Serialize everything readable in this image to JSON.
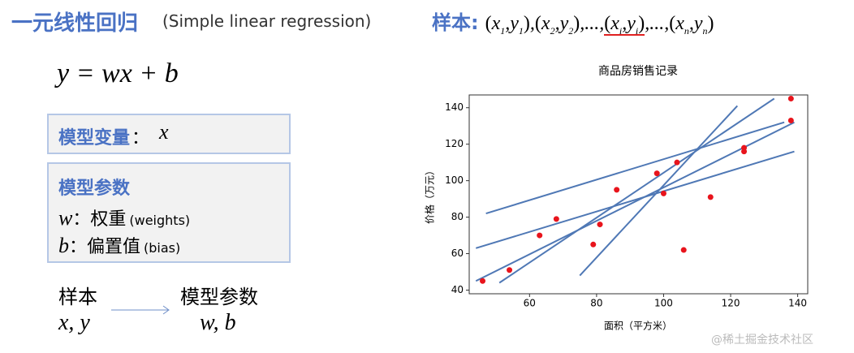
{
  "header": {
    "title": "一元线性回归",
    "subtitle": "(Simple linear regression)"
  },
  "sample": {
    "label": "样本",
    "colon": ":",
    "open": "(",
    "sep": ",",
    "close": ")",
    "ellipsis": "...",
    "pairs": [
      {
        "x": "x",
        "x_sub": "1",
        "y": "y",
        "y_sub": "1"
      },
      {
        "x": "x",
        "x_sub": "2",
        "y": "y",
        "y_sub": "2"
      },
      {
        "x": "x",
        "x_sub": "i",
        "y": "y",
        "y_sub": "i"
      },
      {
        "x": "x",
        "x_sub": "n",
        "y": "y",
        "y_sub": "n"
      }
    ]
  },
  "model": {
    "formula": "y = wx + b"
  },
  "variable_box": {
    "title": "模型变量",
    "colon": "：",
    "symbol": "x"
  },
  "param_box": {
    "title": "模型参数",
    "rows": [
      {
        "symbol": "w",
        "colon": "：",
        "name": "权重",
        "en": "(weights)"
      },
      {
        "symbol": "b",
        "colon": "：",
        "name": "偏置值",
        "en": "(bias)"
      }
    ]
  },
  "flow": {
    "from_title": "样本",
    "from_symbols": "x, y",
    "to_title": "模型参数",
    "to_symbols": "w, b"
  },
  "watermark": "@稀土掘金技术社区",
  "chart_data": {
    "type": "scatter",
    "title": "商品房销售记录",
    "x_label": "面积（平方米）",
    "y_label": "价格（万元）",
    "x": [
      46,
      54,
      63,
      68,
      79,
      81,
      86,
      98,
      100,
      104,
      106,
      114,
      124,
      124,
      138,
      138
    ],
    "series": [
      {
        "color": "#e8141c",
        "values": [
          45,
          51,
          70,
          79,
          65,
          76,
          95,
          104,
          93,
          110,
          62,
          91,
          118,
          116,
          145,
          133
        ]
      }
    ],
    "lines": [
      {
        "color": "#4f78b5",
        "x": [
          47,
          136
        ],
        "values": [
          82,
          132
        ]
      },
      {
        "color": "#4f78b5",
        "x": [
          44,
          139
        ],
        "values": [
          63,
          116
        ]
      },
      {
        "color": "#4f78b5",
        "x": [
          44,
          139
        ],
        "values": [
          45,
          132
        ]
      },
      {
        "color": "#4f78b5",
        "x": [
          51,
          133
        ],
        "values": [
          44,
          145
        ]
      },
      {
        "color": "#4f78b5",
        "x": [
          75,
          122
        ],
        "values": [
          48,
          141
        ]
      }
    ],
    "xlim": [
      42,
      143
    ],
    "ylim": [
      38,
      147
    ],
    "xticks": [
      60,
      80,
      100,
      120,
      140
    ],
    "yticks": [
      40,
      60,
      80,
      100,
      120,
      140
    ]
  }
}
